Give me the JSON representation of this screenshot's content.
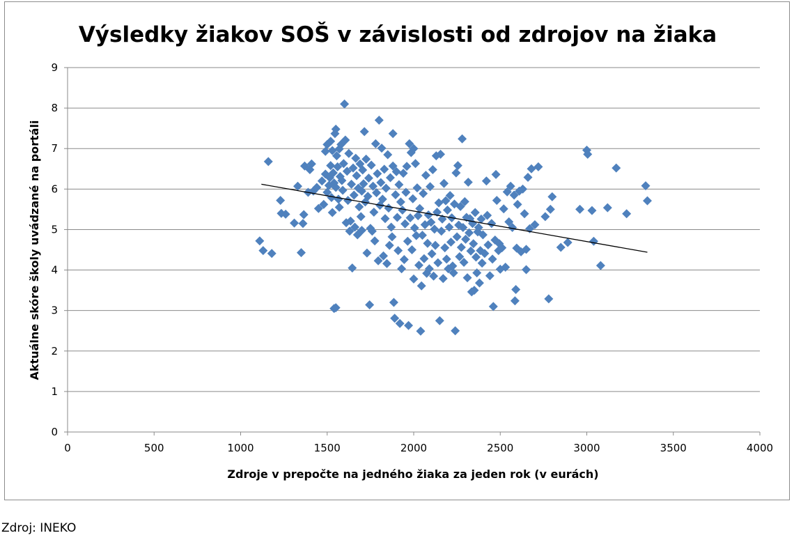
{
  "source_note": "Zdroj: INEKO",
  "chart_data": {
    "type": "scatter",
    "title": "Výsledky žiakov SOŠ v závislosti od zdrojov na žiaka",
    "xlabel": "Zdroje v prepočte na jedného žiaka za jeden rok (v eurách)",
    "ylabel": "Aktuálne skóre školy uvádzané na portáli",
    "xlim": [
      0,
      4000
    ],
    "ylim": [
      0,
      9
    ],
    "xticks": [
      "0",
      "500",
      "1000",
      "1500",
      "2000",
      "2500",
      "3000",
      "3500",
      "4000"
    ],
    "yticks": [
      "0",
      "1",
      "2",
      "3",
      "4",
      "5",
      "6",
      "7",
      "8",
      "9"
    ],
    "grid": true,
    "marker_color": "#4f81bd",
    "trendline": {
      "x": [
        1120,
        3350
      ],
      "y": [
        6.12,
        4.44
      ],
      "color": "#000000"
    },
    "points": [
      [
        1110,
        4.72
      ],
      [
        1130,
        4.48
      ],
      [
        1160,
        6.68
      ],
      [
        1180,
        4.41
      ],
      [
        1230,
        5.72
      ],
      [
        1235,
        5.4
      ],
      [
        1260,
        5.38
      ],
      [
        1310,
        5.16
      ],
      [
        1330,
        6.07
      ],
      [
        1350,
        4.43
      ],
      [
        1360,
        5.15
      ],
      [
        1365,
        5.37
      ],
      [
        1370,
        6.57
      ],
      [
        1390,
        5.92
      ],
      [
        1400,
        6.48
      ],
      [
        1410,
        6.62
      ],
      [
        1420,
        5.95
      ],
      [
        1440,
        6.04
      ],
      [
        1450,
        5.52
      ],
      [
        1470,
        6.2
      ],
      [
        1480,
        5.62
      ],
      [
        1490,
        6.37
      ],
      [
        1490,
        6.93
      ],
      [
        1500,
        7.1
      ],
      [
        1500,
        5.92
      ],
      [
        1510,
        6.09
      ],
      [
        1515,
        6.28
      ],
      [
        1520,
        7.18
      ],
      [
        1520,
        6.58
      ],
      [
        1525,
        5.79
      ],
      [
        1530,
        6.95
      ],
      [
        1530,
        5.42
      ],
      [
        1535,
        6.4
      ],
      [
        1540,
        6.15
      ],
      [
        1540,
        3.05
      ],
      [
        1545,
        7.37
      ],
      [
        1550,
        7.48
      ],
      [
        1550,
        6.04
      ],
      [
        1550,
        3.07
      ],
      [
        1555,
        6.82
      ],
      [
        1560,
        6.55
      ],
      [
        1565,
        5.75
      ],
      [
        1570,
        6.99
      ],
      [
        1570,
        5.55
      ],
      [
        1575,
        6.31
      ],
      [
        1580,
        7.1
      ],
      [
        1585,
        6.21
      ],
      [
        1590,
        5.97
      ],
      [
        1595,
        6.63
      ],
      [
        1600,
        8.1
      ],
      [
        1605,
        7.21
      ],
      [
        1610,
        5.17
      ],
      [
        1615,
        6.44
      ],
      [
        1620,
        5.72
      ],
      [
        1625,
        6.88
      ],
      [
        1630,
        4.96
      ],
      [
        1635,
        5.21
      ],
      [
        1640,
        6.12
      ],
      [
        1645,
        4.05
      ],
      [
        1650,
        6.52
      ],
      [
        1655,
        5.85
      ],
      [
        1660,
        5.06
      ],
      [
        1665,
        6.76
      ],
      [
        1670,
        6.33
      ],
      [
        1675,
        4.87
      ],
      [
        1680,
        6.02
      ],
      [
        1685,
        5.56
      ],
      [
        1690,
        6.62
      ],
      [
        1695,
        5.32
      ],
      [
        1700,
        5.95
      ],
      [
        1700,
        4.98
      ],
      [
        1705,
        6.47
      ],
      [
        1710,
        6.13
      ],
      [
        1715,
        7.42
      ],
      [
        1720,
        5.68
      ],
      [
        1725,
        6.74
      ],
      [
        1730,
        4.42
      ],
      [
        1735,
        5.82
      ],
      [
        1740,
        6.27
      ],
      [
        1745,
        3.14
      ],
      [
        1750,
        5.03
      ],
      [
        1755,
        6.59
      ],
      [
        1760,
        4.96
      ],
      [
        1765,
        6.07
      ],
      [
        1770,
        5.43
      ],
      [
        1775,
        4.72
      ],
      [
        1780,
        7.12
      ],
      [
        1785,
        5.91
      ],
      [
        1790,
        6.38
      ],
      [
        1795,
        4.23
      ],
      [
        1800,
        7.7
      ],
      [
        1805,
        5.6
      ],
      [
        1810,
        6.16
      ],
      [
        1815,
        7.01
      ],
      [
        1820,
        5.75
      ],
      [
        1825,
        4.35
      ],
      [
        1830,
        6.49
      ],
      [
        1835,
        5.27
      ],
      [
        1840,
        6.02
      ],
      [
        1845,
        4.16
      ],
      [
        1850,
        6.85
      ],
      [
        1855,
        5.53
      ],
      [
        1860,
        4.61
      ],
      [
        1865,
        6.28
      ],
      [
        1870,
        5.06
      ],
      [
        1875,
        4.82
      ],
      [
        1880,
        6.57
      ],
      [
        1880,
        7.37
      ],
      [
        1885,
        3.2
      ],
      [
        1890,
        2.81
      ],
      [
        1895,
        5.86
      ],
      [
        1900,
        6.43
      ],
      [
        1905,
        5.3
      ],
      [
        1910,
        4.48
      ],
      [
        1915,
        6.11
      ],
      [
        1920,
        2.68
      ],
      [
        1925,
        5.68
      ],
      [
        1930,
        4.03
      ],
      [
        1935,
        5.48
      ],
      [
        1940,
        6.39
      ],
      [
        1945,
        4.26
      ],
      [
        1950,
        5.14
      ],
      [
        1955,
        5.92
      ],
      [
        1960,
        6.56
      ],
      [
        1965,
        4.71
      ],
      [
        1970,
        2.63
      ],
      [
        1975,
        7.12
      ],
      [
        1980,
        5.29
      ],
      [
        1985,
        6.9
      ],
      [
        1990,
        4.5
      ],
      [
        1995,
        5.76
      ],
      [
        2000,
        7.0
      ],
      [
        2000,
        3.78
      ],
      [
        2005,
        5.04
      ],
      [
        2010,
        6.63
      ],
      [
        2015,
        4.85
      ],
      [
        2020,
        6.03
      ],
      [
        2025,
        5.34
      ],
      [
        2030,
        4.12
      ],
      [
        2035,
        5.52
      ],
      [
        2040,
        2.49
      ],
      [
        2045,
        3.61
      ],
      [
        2050,
        4.86
      ],
      [
        2055,
        5.89
      ],
      [
        2060,
        4.28
      ],
      [
        2065,
        5.12
      ],
      [
        2070,
        6.34
      ],
      [
        2075,
        3.92
      ],
      [
        2080,
        4.66
      ],
      [
        2085,
        5.36
      ],
      [
        2090,
        4.03
      ],
      [
        2095,
        6.06
      ],
      [
        2100,
        5.18
      ],
      [
        2105,
        4.4
      ],
      [
        2110,
        6.48
      ],
      [
        2115,
        3.85
      ],
      [
        2120,
        5.01
      ],
      [
        2125,
        4.61
      ],
      [
        2130,
        6.82
      ],
      [
        2135,
        5.43
      ],
      [
        2140,
        4.18
      ],
      [
        2145,
        5.66
      ],
      [
        2150,
        2.75
      ],
      [
        2155,
        6.86
      ],
      [
        2160,
        4.96
      ],
      [
        2165,
        5.26
      ],
      [
        2170,
        3.79
      ],
      [
        2175,
        6.14
      ],
      [
        2180,
        4.55
      ],
      [
        2185,
        5.71
      ],
      [
        2190,
        4.27
      ],
      [
        2195,
        5.48
      ],
      [
        2200,
        4.03
      ],
      [
        2205,
        5.06
      ],
      [
        2210,
        5.84
      ],
      [
        2215,
        4.69
      ],
      [
        2220,
        5.29
      ],
      [
        2225,
        4.1
      ],
      [
        2230,
        3.93
      ],
      [
        2235,
        5.63
      ],
      [
        2240,
        2.5
      ],
      [
        2245,
        6.4
      ],
      [
        2250,
        4.82
      ],
      [
        2255,
        6.58
      ],
      [
        2260,
        5.11
      ],
      [
        2265,
        4.33
      ],
      [
        2270,
        5.57
      ],
      [
        2275,
        4.56
      ],
      [
        2280,
        7.24
      ],
      [
        2285,
        5.05
      ],
      [
        2290,
        4.19
      ],
      [
        2295,
        5.69
      ],
      [
        2300,
        4.76
      ],
      [
        2305,
        5.3
      ],
      [
        2310,
        3.81
      ],
      [
        2315,
        6.17
      ],
      [
        2320,
        4.92
      ],
      [
        2325,
        5.27
      ],
      [
        2330,
        4.47
      ],
      [
        2335,
        3.46
      ],
      [
        2340,
        5.15
      ],
      [
        2345,
        4.65
      ],
      [
        2350,
        3.5
      ],
      [
        2355,
        5.42
      ],
      [
        2360,
        4.32
      ],
      [
        2365,
        3.93
      ],
      [
        2370,
        4.94
      ],
      [
        2375,
        5.05
      ],
      [
        2380,
        3.68
      ],
      [
        2385,
        4.48
      ],
      [
        2390,
        5.26
      ],
      [
        2395,
        4.17
      ],
      [
        2400,
        4.87
      ],
      [
        2410,
        4.41
      ],
      [
        2420,
        6.2
      ],
      [
        2425,
        5.35
      ],
      [
        2430,
        4.62
      ],
      [
        2440,
        3.86
      ],
      [
        2450,
        5.15
      ],
      [
        2455,
        4.27
      ],
      [
        2460,
        3.1
      ],
      [
        2470,
        4.74
      ],
      [
        2475,
        6.36
      ],
      [
        2480,
        5.72
      ],
      [
        2490,
        4.48
      ],
      [
        2495,
        4.65
      ],
      [
        2500,
        4.02
      ],
      [
        2510,
        4.55
      ],
      [
        2520,
        5.51
      ],
      [
        2530,
        4.07
      ],
      [
        2540,
        5.93
      ],
      [
        2550,
        5.19
      ],
      [
        2560,
        6.07
      ],
      [
        2570,
        5.05
      ],
      [
        2580,
        5.85
      ],
      [
        2585,
        3.24
      ],
      [
        2590,
        3.52
      ],
      [
        2595,
        4.54
      ],
      [
        2600,
        5.62
      ],
      [
        2610,
        5.95
      ],
      [
        2620,
        4.45
      ],
      [
        2630,
        6.0
      ],
      [
        2640,
        5.39
      ],
      [
        2650,
        4.51
      ],
      [
        2650,
        4.01
      ],
      [
        2660,
        6.29
      ],
      [
        2670,
        5.02
      ],
      [
        2680,
        6.5
      ],
      [
        2700,
        5.12
      ],
      [
        2720,
        6.55
      ],
      [
        2760,
        5.32
      ],
      [
        2780,
        3.29
      ],
      [
        2790,
        5.5
      ],
      [
        2800,
        5.81
      ],
      [
        2850,
        4.56
      ],
      [
        2890,
        4.68
      ],
      [
        2960,
        5.5
      ],
      [
        3000,
        6.96
      ],
      [
        3005,
        6.86
      ],
      [
        3030,
        5.47
      ],
      [
        3040,
        4.71
      ],
      [
        3080,
        4.11
      ],
      [
        3120,
        5.54
      ],
      [
        3170,
        6.52
      ],
      [
        3230,
        5.39
      ],
      [
        3340,
        6.08
      ],
      [
        3350,
        5.71
      ]
    ]
  }
}
